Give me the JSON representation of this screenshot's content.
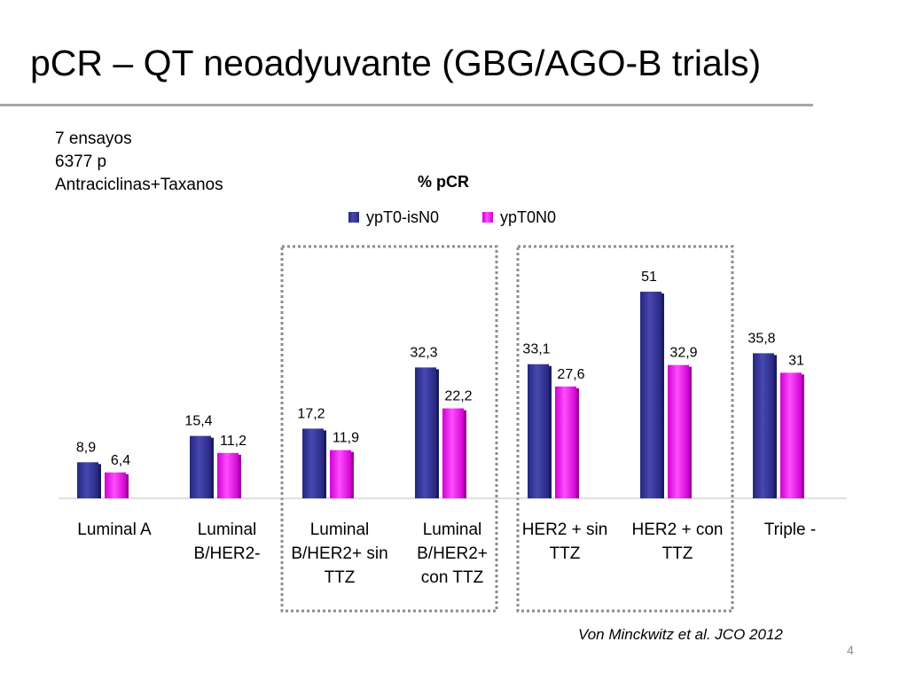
{
  "slide": {
    "title": "pCR – QT neoadyuvante (GBG/AGO-B trials)",
    "info_lines": [
      "7 ensayos",
      "6377 p",
      "Antraciclinas+Taxanos"
    ],
    "citation": "Von Minckwitz et al. JCO 2012",
    "page_number": "4"
  },
  "chart_data": {
    "type": "bar",
    "title": "% pCR",
    "legend_position": "top",
    "grid": false,
    "ylim": [
      0,
      60
    ],
    "categories": [
      [
        "Luminal A"
      ],
      [
        "Luminal",
        "B/HER2-"
      ],
      [
        "Luminal",
        "B/HER2+ sin",
        "TTZ"
      ],
      [
        "Luminal",
        "B/HER2+",
        "con TTZ"
      ],
      [
        "HER2 + sin",
        "TTZ"
      ],
      [
        "HER2 + con",
        "TTZ"
      ],
      [
        "Triple -"
      ]
    ],
    "series": [
      {
        "name": "ypT0-isN0",
        "color": "#3a3a9c",
        "values": [
          8.9,
          15.4,
          17.2,
          32.3,
          33.1,
          51,
          35.8
        ],
        "labels": [
          "8,9",
          "15,4",
          "17,2",
          "32,3",
          "33,1",
          "51",
          "35,8"
        ]
      },
      {
        "name": "ypT0N0",
        "color": "#ff19ff",
        "values": [
          6.4,
          11.2,
          11.9,
          22.2,
          27.6,
          32.9,
          31
        ],
        "labels": [
          "6,4",
          "11,2",
          "11,9",
          "22,2",
          "27,6",
          "32,9",
          "31"
        ]
      }
    ],
    "highlight_groups": [
      [
        2,
        3
      ],
      [
        4,
        5
      ]
    ]
  }
}
